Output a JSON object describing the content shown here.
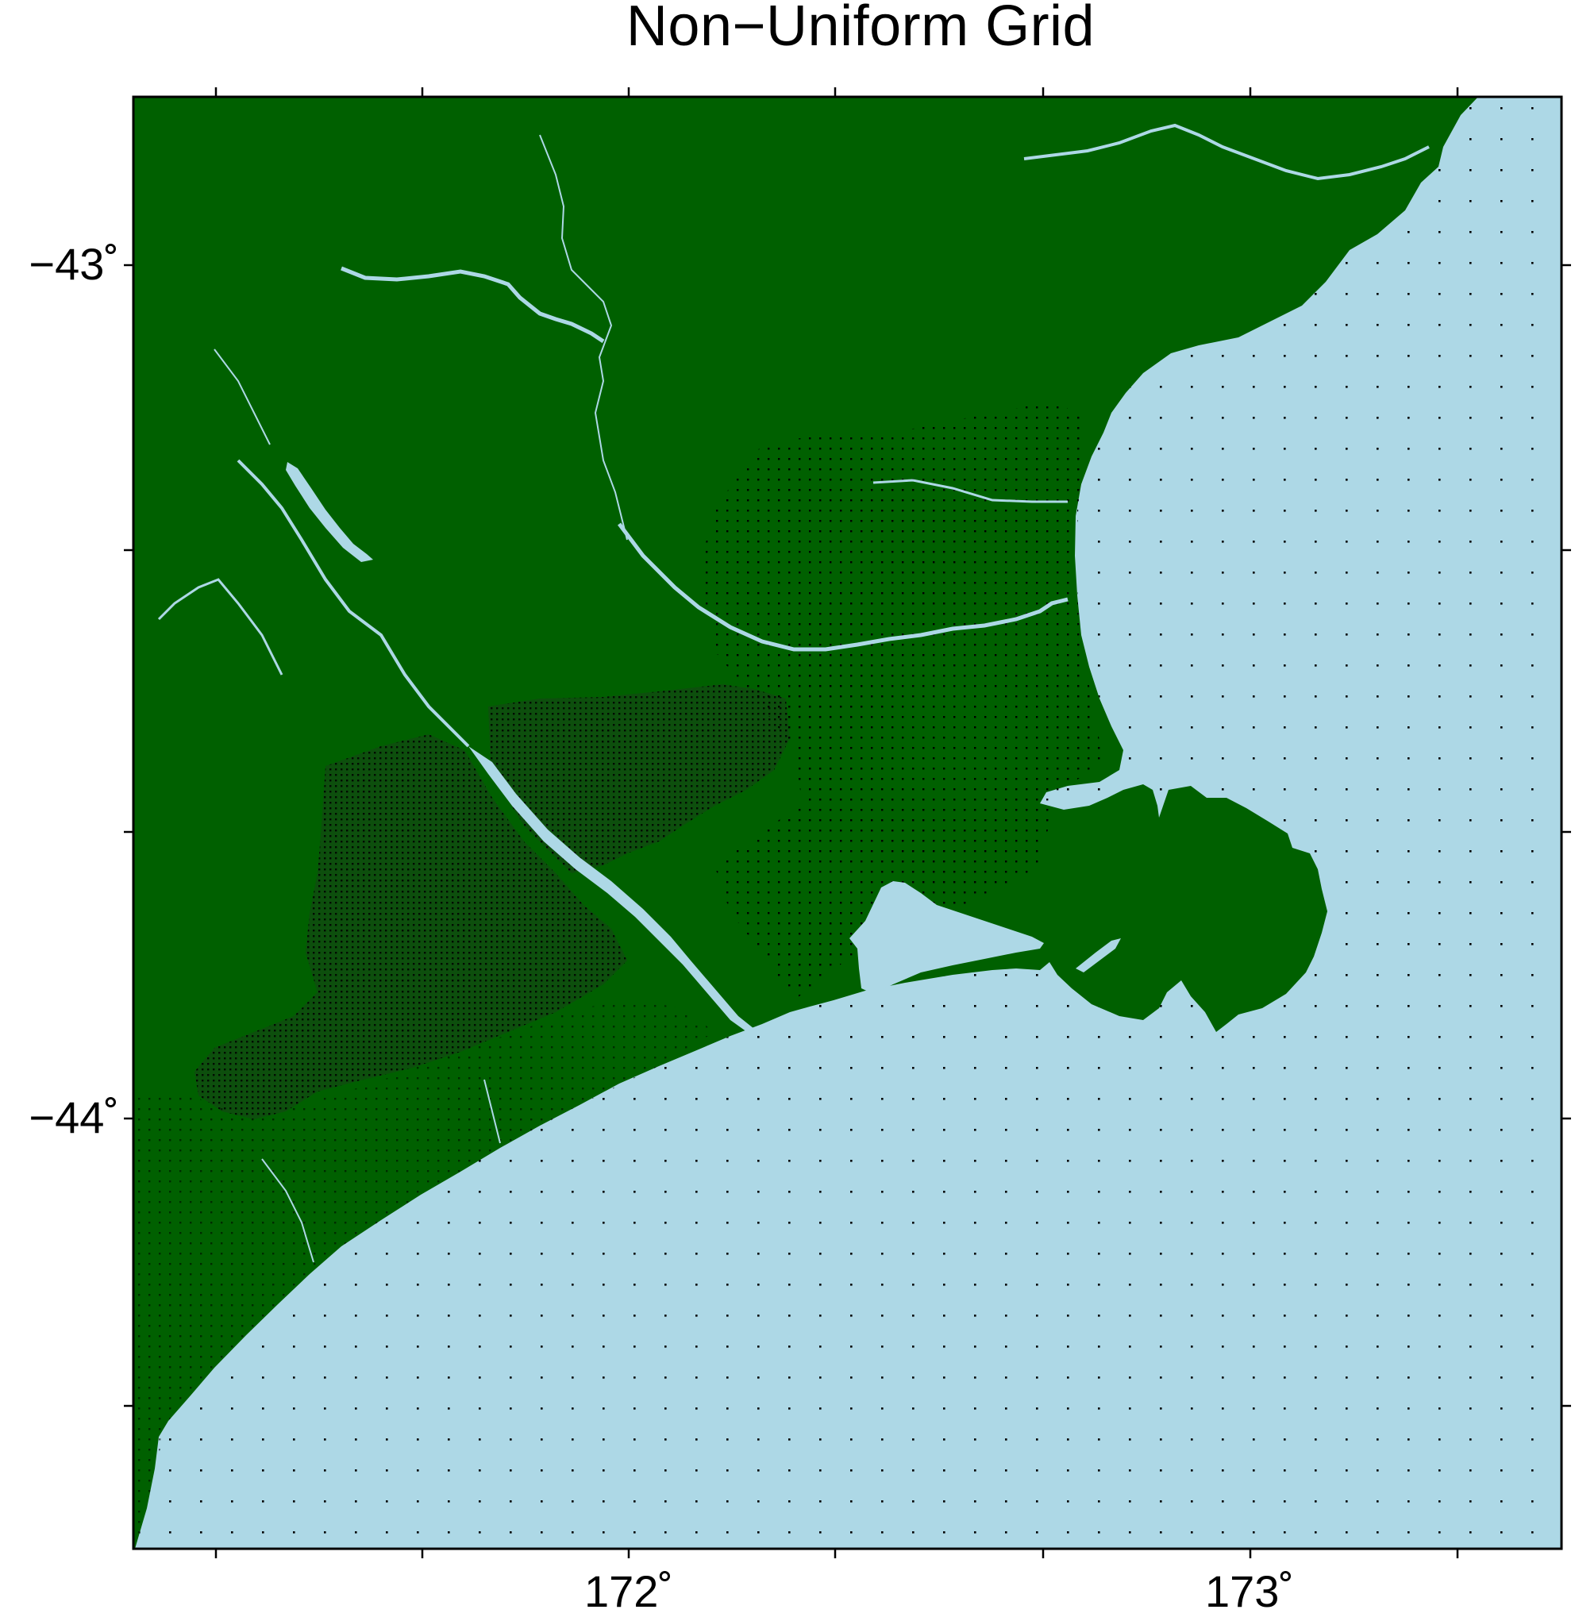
{
  "title": "Non−Uniform Grid",
  "axes": {
    "latitude_labels": [
      "−43˚",
      "−44˚"
    ],
    "longitude_labels": [
      "172˚",
      "173˚"
    ]
  },
  "colors": {
    "land": "#006000",
    "water": "#add8e6",
    "dense_land": "#0c480c",
    "grid_points": "#000000",
    "frame": "#000000"
  }
}
